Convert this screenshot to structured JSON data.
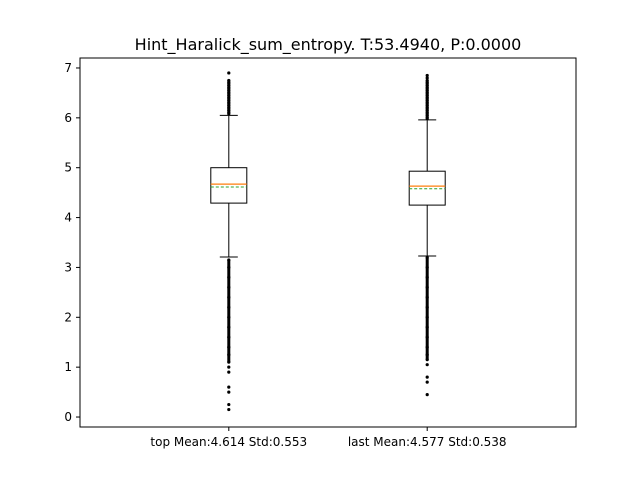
{
  "chart_data": {
    "type": "box",
    "title": "Hint_Haralick_sum_entropy. T:53.4940, P:0.0000",
    "xlabel": "",
    "ylabel": "",
    "ylim": [
      -0.2,
      7.2
    ],
    "yticks": [
      0,
      1,
      2,
      3,
      4,
      5,
      6,
      7
    ],
    "grid": false,
    "categories": [
      "top Mean:4.614 Std:0.553",
      "last Mean:4.577 Std:0.538"
    ],
    "boxes": [
      {
        "label": "top Mean:4.614 Std:0.553",
        "whisker_low": 3.21,
        "q1": 4.29,
        "median": 4.67,
        "mean": 4.614,
        "q3": 5.0,
        "whisker_high": 6.05,
        "outliers_high": [
          6.1,
          6.15,
          6.2,
          6.25,
          6.3,
          6.35,
          6.4,
          6.45,
          6.5,
          6.55,
          6.6,
          6.65,
          6.7,
          6.75,
          6.9
        ],
        "outliers_low": [
          3.15,
          3.0,
          2.8,
          2.6,
          2.4,
          2.2,
          2.0,
          1.8,
          1.6,
          1.4,
          1.25,
          1.1,
          1.0,
          0.9,
          0.6,
          0.5,
          0.25,
          0.15
        ]
      },
      {
        "label": "last Mean:4.577 Std:0.538",
        "whisker_low": 3.23,
        "q1": 4.25,
        "median": 4.63,
        "mean": 4.577,
        "q3": 4.93,
        "whisker_high": 5.96,
        "outliers_high": [
          6.0,
          6.05,
          6.1,
          6.15,
          6.2,
          6.25,
          6.3,
          6.35,
          6.4,
          6.45,
          6.5,
          6.55,
          6.6,
          6.65,
          6.7,
          6.75,
          6.8,
          6.85
        ],
        "outliers_low": [
          3.2,
          3.0,
          2.8,
          2.6,
          2.4,
          2.2,
          2.0,
          1.8,
          1.6,
          1.4,
          1.25,
          1.15,
          1.05,
          0.8,
          0.7,
          0.45
        ]
      }
    ],
    "colors": {
      "box": "#000000",
      "median": "#ff7f0e",
      "mean": "#2ca02c",
      "outlier": "#000000"
    }
  }
}
